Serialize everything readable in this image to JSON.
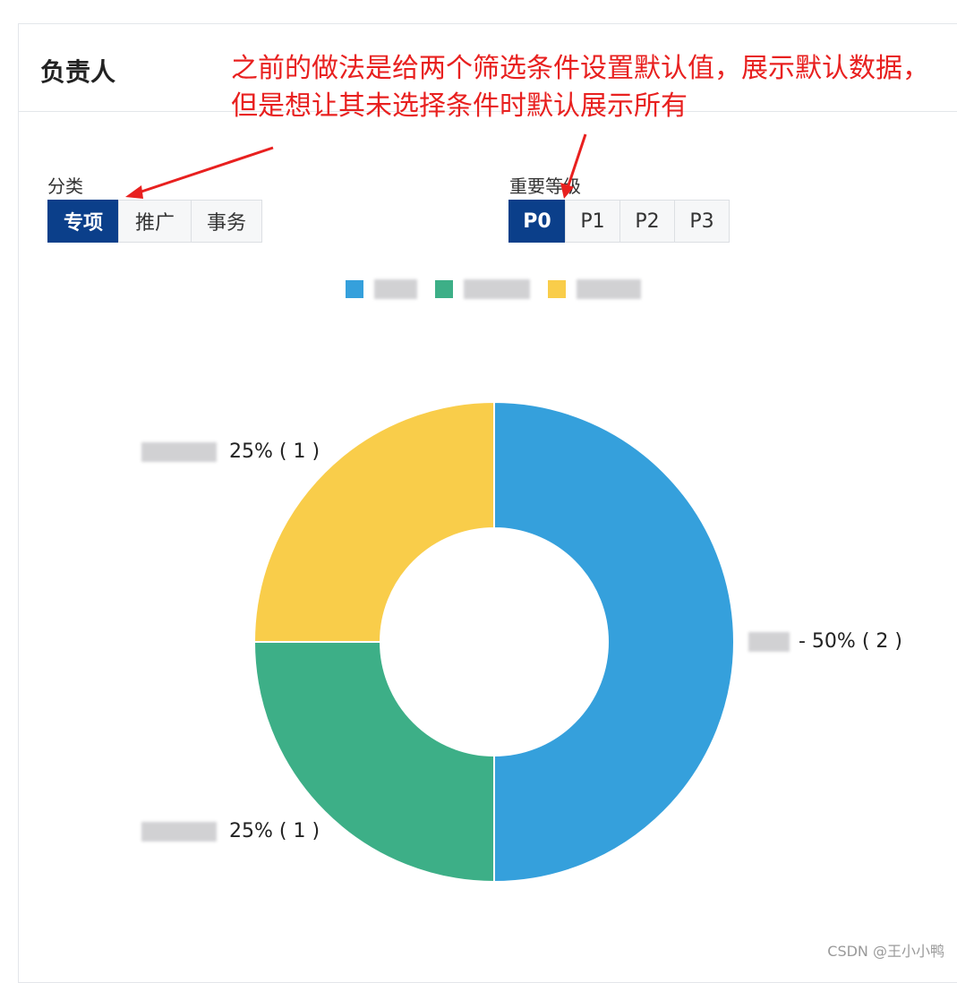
{
  "panel": {
    "title": "负责人"
  },
  "annotation": {
    "text": "之前的做法是给两个筛选条件设置默认值，展示默认数据，但是想让其未选择条件时默认展示所有"
  },
  "filters": {
    "category": {
      "label": "分类",
      "options": [
        "专项",
        "推广",
        "事务"
      ],
      "selected": "专项"
    },
    "priority": {
      "label": "重要等级",
      "options": [
        "P0",
        "P1",
        "P2",
        "P3"
      ],
      "selected": "P0"
    }
  },
  "colors": {
    "blue": "#35a0dc",
    "green": "#3daf87",
    "yellow": "#f9cd4a",
    "accent": "#0b3f8a",
    "annotation": "#e8201f"
  },
  "chart_data": {
    "type": "pie",
    "donut": true,
    "slices": [
      {
        "value": 2,
        "percent": "50%",
        "label_text": "- 50% ( 2 )",
        "color": "#35a0dc"
      },
      {
        "value": 1,
        "percent": "25%",
        "label_text": "25% ( 1 )",
        "color": "#3daf87"
      },
      {
        "value": 1,
        "percent": "25%",
        "label_text": "25% ( 1 )",
        "color": "#f9cd4a"
      }
    ],
    "legend_placement": "top-center"
  },
  "watermark": "CSDN @王小小鸭"
}
